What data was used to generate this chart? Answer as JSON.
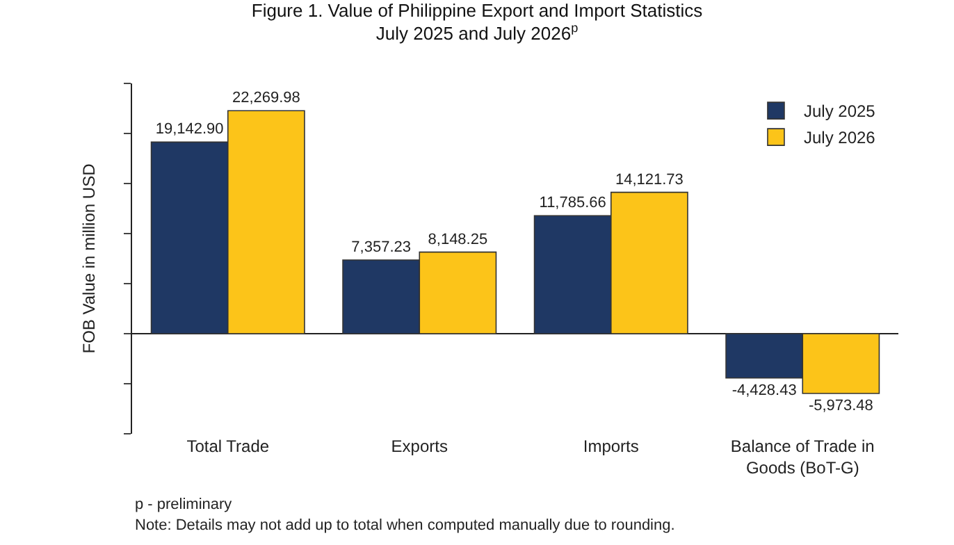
{
  "chart_data": {
    "type": "bar",
    "title": "Figure 1. Value of Philippine Export and Import Statistics",
    "subtitle": "July 2025 and July 2026$^{p}$",
    "ylabel": "FOB Value in million USD",
    "categories": [
      "Total Trade",
      "Exports",
      "Imports",
      "Balance of Trade in Goods (BoT-G)"
    ],
    "series": [
      {
        "name": "July 2025",
        "color": "#1f3864",
        "values": [
          19142.9,
          7357.23,
          11785.66,
          -4428.43
        ],
        "value_labels": [
          "19,142.90",
          "7,357.23",
          "11,785.66",
          "-4,428.43"
        ]
      },
      {
        "name": "July 2026",
        "color": "#fcc419",
        "values": [
          22269.98,
          8148.25,
          14121.73,
          -5973.48
        ],
        "value_labels": [
          "22,269.98",
          "8,148.25",
          "14,121.73",
          "-5,973.48"
        ]
      }
    ],
    "ylim": [
      -10000,
      25000
    ],
    "yticks": [
      {
        "value": -10000,
        "label": null
      },
      {
        "value": -5000,
        "label": null
      },
      {
        "value": 0,
        "label": null
      },
      {
        "value": 5000,
        "label": null
      },
      {
        "value": 10000,
        "label": null
      },
      {
        "value": 15000,
        "label": null
      },
      {
        "value": 20000,
        "label": null
      },
      {
        "value": 25000,
        "label": null
      }
    ],
    "legend": "top right",
    "annotations": [
      "p - preliminary",
      "Note: Details may not add up to total when computed manually due to rounding."
    ]
  }
}
